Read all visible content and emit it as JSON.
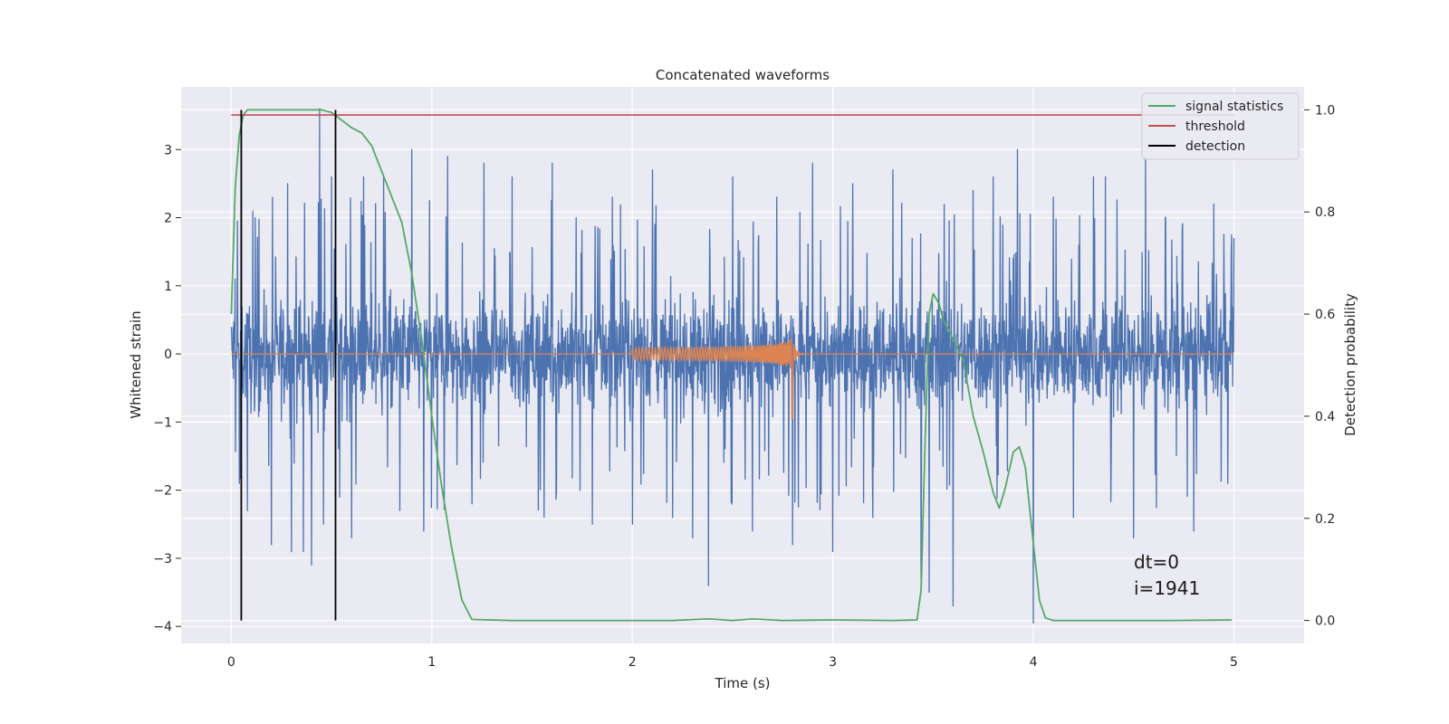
{
  "chart_data": {
    "type": "line",
    "title": "Concatenated waveforms",
    "xlabel": "Time (s)",
    "ylabel": "Whitened strain",
    "y2label": "Detection probability",
    "xlim": [
      -0.25,
      5.35
    ],
    "ylim": [
      -4.25,
      3.92
    ],
    "y2lim": [
      -0.045,
      1.045
    ],
    "xticks": [
      0,
      1,
      2,
      3,
      4,
      5
    ],
    "yticks": [
      -4,
      -3,
      -2,
      -1,
      0,
      1,
      2,
      3
    ],
    "y2ticks": [
      0.0,
      0.2,
      0.4,
      0.6,
      0.8,
      1.0
    ],
    "x_tick_labels": [
      "0",
      "1",
      "2",
      "3",
      "4",
      "5"
    ],
    "y_tick_labels": [
      "−4",
      "−3",
      "−2",
      "−1",
      "0",
      "1",
      "2",
      "3"
    ],
    "y2_tick_labels": [
      "0.0",
      "0.2",
      "0.4",
      "0.6",
      "0.8",
      "1.0"
    ],
    "grid": true,
    "legend_position": "top-right",
    "colors": {
      "background": "#eaeaf2",
      "grid": "#ffffff",
      "strain": "#4c72b0",
      "template": "#dd8452",
      "signal_statistics": "#55a868",
      "threshold": "#c44e52",
      "detection": "#000000"
    },
    "legend": [
      {
        "label": "signal statistics",
        "color": "#55a868"
      },
      {
        "label": "threshold",
        "color": "#c44e52"
      },
      {
        "label": "detection",
        "color": "#000000"
      }
    ],
    "strain": {
      "description": "whitened noise time series",
      "x_range": [
        0,
        5
      ],
      "typical_range": [
        -0.9,
        0.9
      ],
      "spikes": [
        [
          0.02,
          1.1
        ],
        [
          0.04,
          -1.9
        ],
        [
          0.05,
          2.5
        ],
        [
          0.08,
          -2.3
        ],
        [
          0.12,
          2.0
        ],
        [
          0.2,
          -2.8
        ],
        [
          0.28,
          2.5
        ],
        [
          0.3,
          -2.9
        ],
        [
          0.36,
          -2.9
        ],
        [
          0.4,
          -3.1
        ],
        [
          0.44,
          3.6
        ],
        [
          0.46,
          -2.5
        ],
        [
          0.5,
          2.6
        ],
        [
          0.54,
          -2.1
        ],
        [
          0.6,
          -2.7
        ],
        [
          0.66,
          2.6
        ],
        [
          0.76,
          2.6
        ],
        [
          0.84,
          -2.3
        ],
        [
          0.9,
          3.0
        ],
        [
          0.96,
          -2.6
        ],
        [
          1.08,
          2.9
        ],
        [
          1.2,
          -2.2
        ],
        [
          1.26,
          2.8
        ],
        [
          1.4,
          2.6
        ],
        [
          1.56,
          -2.4
        ],
        [
          1.6,
          2.8
        ],
        [
          1.72,
          2.0
        ],
        [
          1.8,
          -2.5
        ],
        [
          1.9,
          2.3
        ],
        [
          2.0,
          -2.5
        ],
        [
          2.1,
          2.7
        ],
        [
          2.2,
          -2.4
        ],
        [
          2.3,
          -2.7
        ],
        [
          2.38,
          -3.4
        ],
        [
          2.5,
          2.6
        ],
        [
          2.6,
          -2.6
        ],
        [
          2.72,
          2.3
        ],
        [
          2.8,
          -2.8
        ],
        [
          2.9,
          2.8
        ],
        [
          3.0,
          -2.9
        ],
        [
          3.1,
          2.5
        ],
        [
          3.2,
          -2.4
        ],
        [
          3.3,
          2.7
        ],
        [
          3.44,
          -3.3
        ],
        [
          3.48,
          -3.5
        ],
        [
          3.6,
          -3.7
        ],
        [
          3.7,
          2.4
        ],
        [
          3.8,
          2.6
        ],
        [
          3.92,
          3.0
        ],
        [
          4.0,
          -4.0
        ],
        [
          4.1,
          2.3
        ],
        [
          4.2,
          -2.4
        ],
        [
          4.3,
          2.6
        ],
        [
          4.36,
          2.6
        ],
        [
          4.5,
          -2.7
        ],
        [
          4.56,
          2.9
        ],
        [
          4.66,
          2.0
        ],
        [
          4.8,
          -2.6
        ],
        [
          4.9,
          2.2
        ],
        [
          5.0,
          1.7
        ]
      ]
    },
    "template": {
      "description": "injected chirp waveform",
      "x_range": [
        0,
        5
      ],
      "chirp_start": 2.0,
      "merger_time": 2.8,
      "start_amplitude": 0.09,
      "peak_amplitude": 0.65,
      "min_value": -0.95
    },
    "signal_statistics": {
      "x": [
        0.0,
        0.02,
        0.04,
        0.06,
        0.08,
        0.12,
        0.2,
        0.3,
        0.45,
        0.5,
        0.55,
        0.6,
        0.65,
        0.7,
        0.75,
        0.8,
        0.85,
        0.9,
        0.95,
        1.0,
        1.05,
        1.1,
        1.15,
        1.2,
        1.4,
        1.8,
        2.2,
        2.38,
        2.5,
        2.6,
        2.75,
        3.0,
        3.3,
        3.42,
        3.44,
        3.46,
        3.48,
        3.5,
        3.53,
        3.55,
        3.6,
        3.65,
        3.7,
        3.75,
        3.8,
        3.83,
        3.86,
        3.9,
        3.93,
        3.96,
        4.0,
        4.03,
        4.06,
        4.1,
        4.3,
        4.7,
        4.99
      ],
      "y": [
        0.6,
        0.85,
        0.95,
        0.99,
        1.0,
        1.0,
        1.0,
        1.0,
        1.0,
        0.995,
        0.98,
        0.965,
        0.955,
        0.93,
        0.88,
        0.83,
        0.78,
        0.68,
        0.55,
        0.4,
        0.26,
        0.14,
        0.04,
        0.002,
        0.0,
        0.0,
        0.0,
        0.003,
        0.0,
        0.003,
        0.0,
        0.001,
        0.0,
        0.001,
        0.06,
        0.35,
        0.6,
        0.64,
        0.62,
        0.59,
        0.55,
        0.51,
        0.4,
        0.33,
        0.25,
        0.22,
        0.26,
        0.33,
        0.34,
        0.3,
        0.15,
        0.04,
        0.005,
        0.0,
        0.0,
        0.0,
        0.001
      ]
    },
    "threshold": {
      "value": 0.99,
      "x_range": [
        0,
        5
      ]
    },
    "detections": [
      {
        "x": 0.05,
        "y_range": [
          0.0,
          1.0
        ]
      },
      {
        "x": 0.52,
        "y_range": [
          0.0,
          1.0
        ]
      }
    ],
    "annotations": [
      "dt=0",
      "i=1941"
    ]
  }
}
